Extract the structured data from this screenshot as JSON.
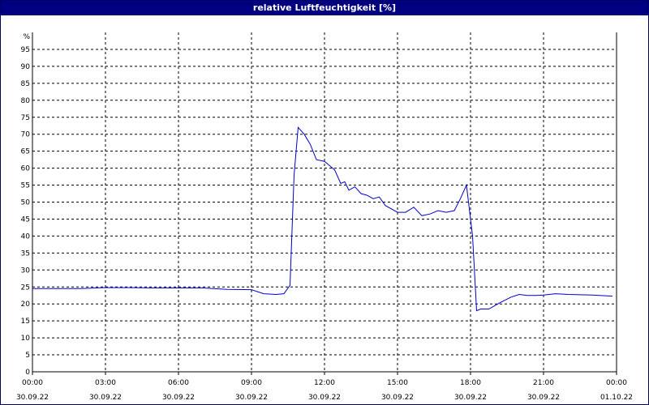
{
  "window": {
    "title": "relative Luftfeuchtigkeit [%]"
  },
  "colors": {
    "titlebar": "#000080",
    "line": "#0000cc",
    "grid": "#000000",
    "axis": "#000000"
  },
  "chart_data": {
    "type": "line",
    "title": "relative Luftfeuchtigkeit [%]",
    "ylabel": "%",
    "xlabel": "",
    "ylim": [
      0,
      100
    ],
    "grid": true,
    "legend": "none",
    "y_ticks": [
      0,
      5,
      10,
      15,
      20,
      25,
      30,
      35,
      40,
      45,
      50,
      55,
      60,
      65,
      70,
      75,
      80,
      85,
      90,
      95
    ],
    "x_ticks": [
      {
        "time": "00:00",
        "date": "30.09.22"
      },
      {
        "time": "03:00",
        "date": "30.09.22"
      },
      {
        "time": "06:00",
        "date": "30.09.22"
      },
      {
        "time": "09:00",
        "date": "30.09.22"
      },
      {
        "time": "12:00",
        "date": "30.09.22"
      },
      {
        "time": "15:00",
        "date": "30.09.22"
      },
      {
        "time": "18:00",
        "date": "30.09.22"
      },
      {
        "time": "21:00",
        "date": "30.09.22"
      },
      {
        "time": "00:00",
        "date": "01.10.22"
      }
    ],
    "xlim": [
      "30.09.22 00:00",
      "01.10.22 00:00"
    ],
    "series": [
      {
        "x": [
          "30.09.22 00:00",
          "30.09.22 01:00",
          "30.09.22 02:00",
          "30.09.22 03:00",
          "30.09.22 04:00",
          "30.09.22 05:00",
          "30.09.22 06:00",
          "30.09.22 07:00",
          "30.09.22 08:00",
          "30.09.22 09:00",
          "30.09.22 09:30",
          "30.09.22 10:00",
          "30.09.22 10:20",
          "30.09.22 10:35",
          "30.09.22 10:45",
          "30.09.22 10:55",
          "30.09.22 11:10",
          "30.09.22 11:25",
          "30.09.22 11:40",
          "30.09.22 12:00",
          "30.09.22 12:10",
          "30.09.22 12:25",
          "30.09.22 12:40",
          "30.09.22 12:50",
          "30.09.22 13:00",
          "30.09.22 13:15",
          "30.09.22 13:30",
          "30.09.22 13:45",
          "30.09.22 14:00",
          "30.09.22 14:15",
          "30.09.22 14:30",
          "30.09.22 15:00",
          "30.09.22 15:20",
          "30.09.22 15:40",
          "30.09.22 16:00",
          "30.09.22 16:20",
          "30.09.22 16:40",
          "30.09.22 17:00",
          "30.09.22 17:20",
          "30.09.22 17:35",
          "30.09.22 17:50",
          "30.09.22 18:05",
          "30.09.22 18:15",
          "30.09.22 18:25",
          "30.09.22 18:45",
          "30.09.22 19:15",
          "30.09.22 19:40",
          "30.09.22 20:00",
          "30.09.22 20:20",
          "30.09.22 20:40",
          "30.09.22 21:00",
          "30.09.22 21:30",
          "30.09.22 22:00",
          "30.09.22 23:00",
          "30.09.22 23:50"
        ],
        "values": [
          24.5,
          24.5,
          24.5,
          24.8,
          24.8,
          24.7,
          24.7,
          24.7,
          24.3,
          24.2,
          23.0,
          22.8,
          23.0,
          25.5,
          58.0,
          72.0,
          70.0,
          67.0,
          62.5,
          62.0,
          61.0,
          59.5,
          55.5,
          56.0,
          53.5,
          54.5,
          52.5,
          52.0,
          51.0,
          51.5,
          49.0,
          47.0,
          47.0,
          48.5,
          46.0,
          46.5,
          47.5,
          47.0,
          47.5,
          51.0,
          55.0,
          40.0,
          18.0,
          18.5,
          18.5,
          20.5,
          22.0,
          22.8,
          22.5,
          22.5,
          22.6,
          23.0,
          22.8,
          22.6,
          22.3
        ]
      }
    ]
  }
}
